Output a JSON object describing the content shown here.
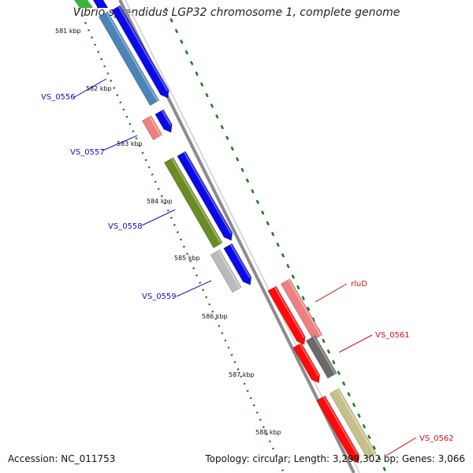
{
  "title": "Vibrio splendidus LGP32 chromosome 1, complete genome",
  "footer": {
    "accession": "Accession: NC_011753",
    "summary": "Topology: circular; Length: 3,299,302 bp; Genes: 3,066"
  },
  "colors": {
    "backbone": "#8c8c8c",
    "tick_dots": "#1a7a1a",
    "label_forward": "#1010c8",
    "label_reverse": "#d01010",
    "cds_forward": "#0a0ae6"
  },
  "ticks": [
    "581 kbp",
    "582 kbp",
    "583 kbp",
    "584 kbp",
    "585 kbp",
    "586 kbp",
    "587 kbp",
    "588 kbp"
  ],
  "genes": [
    {
      "label": "VS_0556",
      "strand": "forward",
      "color": "#4a84b8"
    },
    {
      "label": "VS_0557",
      "strand": "forward",
      "color": "#ee8080"
    },
    {
      "label": "VS_0558",
      "strand": "forward",
      "color": "#6a8c24"
    },
    {
      "label": "VS_0559",
      "strand": "forward",
      "color": "#bbbbbb"
    },
    {
      "label": "rluD",
      "strand": "reverse",
      "color": "#ee8080"
    },
    {
      "label": "VS_0561",
      "strand": "reverse",
      "color": "#6a6a6a"
    },
    {
      "label": "VS_0562",
      "strand": "reverse",
      "color": "#c8c08a"
    }
  ]
}
